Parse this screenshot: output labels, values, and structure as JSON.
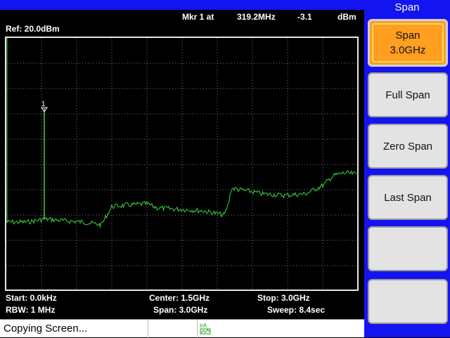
{
  "header": {
    "marker_label": "Mkr 1 at",
    "marker_freq": "319.2MHz",
    "marker_level": "-3.1",
    "marker_unit": "dBm",
    "ref_level": "Ref: 20.0dBm"
  },
  "trace": {
    "marker_number": "1",
    "color": "#3cd23c"
  },
  "footer": {
    "start": "Start: 0.0kHz",
    "center": "Center: 1.5GHz",
    "stop": "Stop: 3.0GHz",
    "rbw": "RBW: 1 MHz",
    "span": "Span: 3.0GHz",
    "sweep": "Sweep: 8.4sec"
  },
  "status": {
    "message": "Copying Screen...",
    "trace_indicator": "trA"
  },
  "panel": {
    "title": "Span",
    "softkeys": {
      "span_label": "Span",
      "span_value": "3.0GHz",
      "full_span": "Full Span",
      "zero_span": "Zero Span",
      "last_span": "Last Span",
      "empty1": "",
      "empty2": ""
    }
  }
}
